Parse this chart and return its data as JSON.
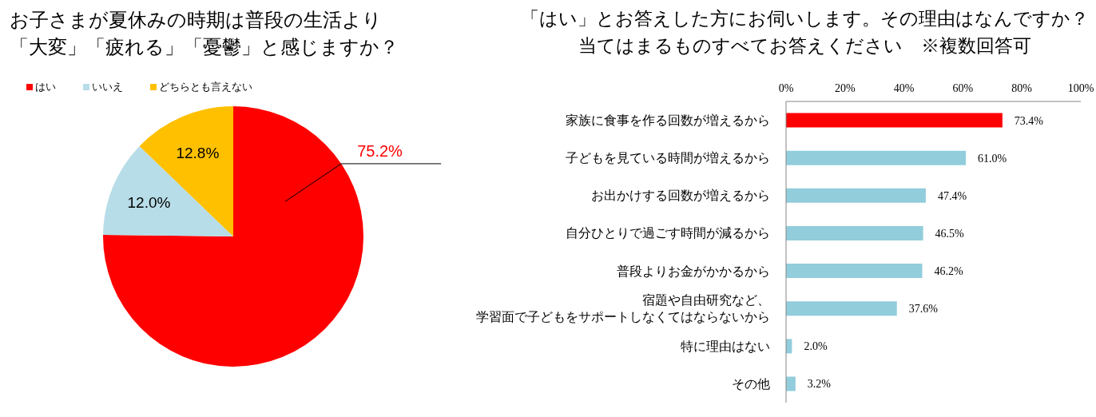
{
  "chart_data": [
    {
      "type": "pie",
      "title": "お子さまが夏休みの時期は普段の生活より「大変」「疲れる」「憂鬱」と感じますか？",
      "categories": [
        "はい",
        "いいえ",
        "どちらとも言えない"
      ],
      "values": [
        75.2,
        12.0,
        12.8
      ],
      "colors": [
        "#ff0000",
        "#b7dde8",
        "#ffc000"
      ],
      "value_labels": [
        "75.2%",
        "12.0%",
        "12.8%"
      ],
      "legend": "top left"
    },
    {
      "type": "bar",
      "title": "「はい」とお答えした方にお伺いします。その理由はなんですか？当てはまるものすべてお答えください　※複数回答可",
      "orientation": "horizontal",
      "categories": [
        "家族に食事を作る回数が増えるから",
        "子どもを見ている時間が増えるから",
        "お出かけする回数が増えるから",
        "自分ひとりで過ごす時間が減るから",
        "普段よりお金がかかるから",
        "宿題や自由研究など、学習面で子どもをサポートしなくてはならないから",
        "特に理由はない",
        "その他"
      ],
      "values": [
        73.4,
        61.0,
        47.4,
        46.5,
        46.2,
        37.6,
        2.0,
        3.2
      ],
      "colors": [
        "#ff0000",
        "#92cddc",
        "#92cddc",
        "#92cddc",
        "#92cddc",
        "#92cddc",
        "#92cddc",
        "#92cddc"
      ],
      "xlim": [
        0,
        100
      ],
      "xticks": [
        {
          "value": 0,
          "label": "0%"
        },
        {
          "value": 20,
          "label": "20%"
        },
        {
          "value": 40,
          "label": "40%"
        },
        {
          "value": 60,
          "label": "60%"
        },
        {
          "value": 80,
          "label": "80%"
        },
        {
          "value": 100,
          "label": "100%"
        }
      ],
      "value_labels": [
        "73.4%",
        "61.0%",
        "47.4%",
        "46.5%",
        "46.2%",
        "37.6%",
        "2.0%",
        "3.2%"
      ]
    }
  ]
}
